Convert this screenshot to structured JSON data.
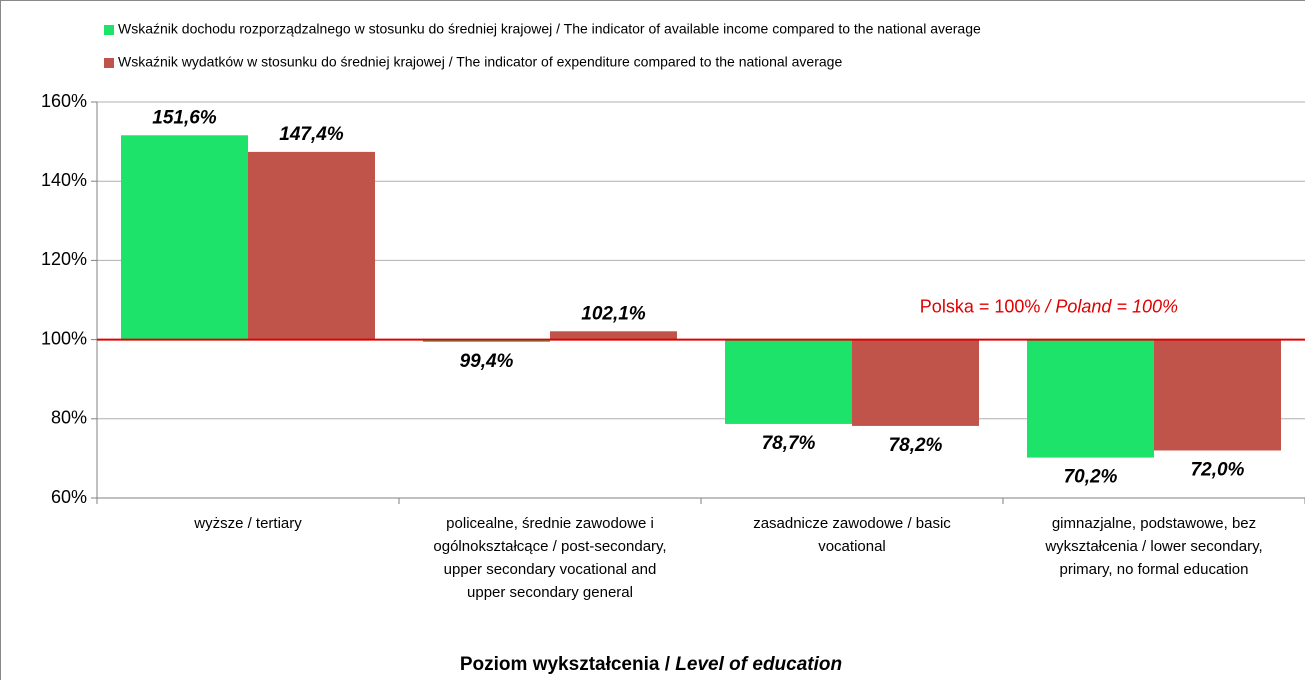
{
  "chart_data": {
    "type": "bar",
    "categories": [
      "wyższe / tertiary",
      "policealne, średnie zawodowe i ogólnokształcące / post-secondary, upper secondary vocational and upper secondary general",
      "zasadnicze zawodowe / basic vocational",
      "gimnazjalne, podstawowe, bez wykształcenia / lower secondary, primary, no formal education"
    ],
    "series": [
      {
        "name": "Wskaźnik dochodu rozporządzalnego w stosunku do średniej krajowej / The indicator of available income compared to the national average",
        "color": "#1ee36b",
        "values": [
          151.6,
          99.4,
          78.7,
          70.2
        ],
        "value_labels": [
          "151,6%",
          "99,4%",
          "78,7%",
          "70,2%"
        ]
      },
      {
        "name": "Wskaźnik wydatków w stosunku do średniej krajowej / The indicator of expenditure compared to the national average",
        "color": "#c0544b",
        "values": [
          147.4,
          102.1,
          78.2,
          72.0
        ],
        "value_labels": [
          "147,4%",
          "102,1%",
          "78,2%",
          "72,0%"
        ]
      }
    ],
    "ylim": [
      60,
      160
    ],
    "yticks": [
      {
        "value": 60,
        "label": "60%"
      },
      {
        "value": 80,
        "label": "80%"
      },
      {
        "value": 100,
        "label": "100%"
      },
      {
        "value": 120,
        "label": "120%"
      },
      {
        "value": 140,
        "label": "140%"
      },
      {
        "value": 160,
        "label": "160%"
      }
    ],
    "grid": true,
    "reference_line": {
      "value": 100,
      "color": "#e00000",
      "label": "Polska = 100%",
      "label_italic": "/ Poland = 100%"
    },
    "x_axis_label": {
      "main": "Poziom wykształcenia /",
      "italic": "Level of education"
    }
  }
}
